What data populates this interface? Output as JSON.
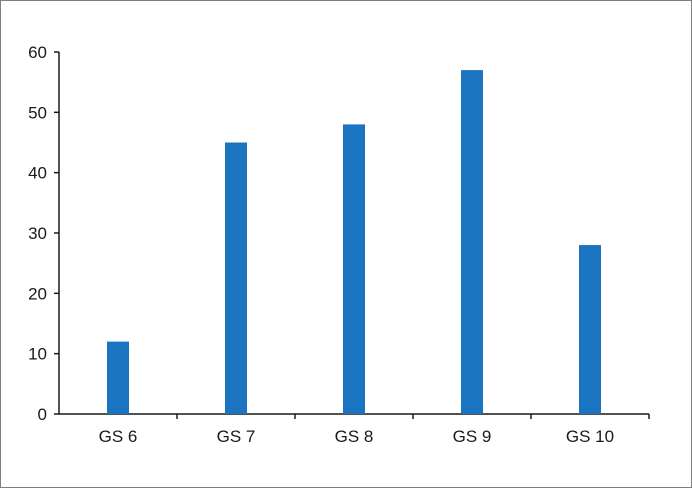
{
  "chart_data": {
    "type": "bar",
    "categories": [
      "GS 6",
      "GS 7",
      "GS 8",
      "GS 9",
      "GS 10"
    ],
    "values": [
      12,
      45,
      48,
      57,
      28
    ],
    "title": "",
    "xlabel": "",
    "ylabel": "",
    "ylim": [
      0,
      60
    ],
    "yticks": [
      0,
      10,
      20,
      30,
      40,
      50,
      60
    ],
    "grid": false,
    "bar_color": "#1b74bf",
    "axis_color": "#1a1a1a"
  }
}
